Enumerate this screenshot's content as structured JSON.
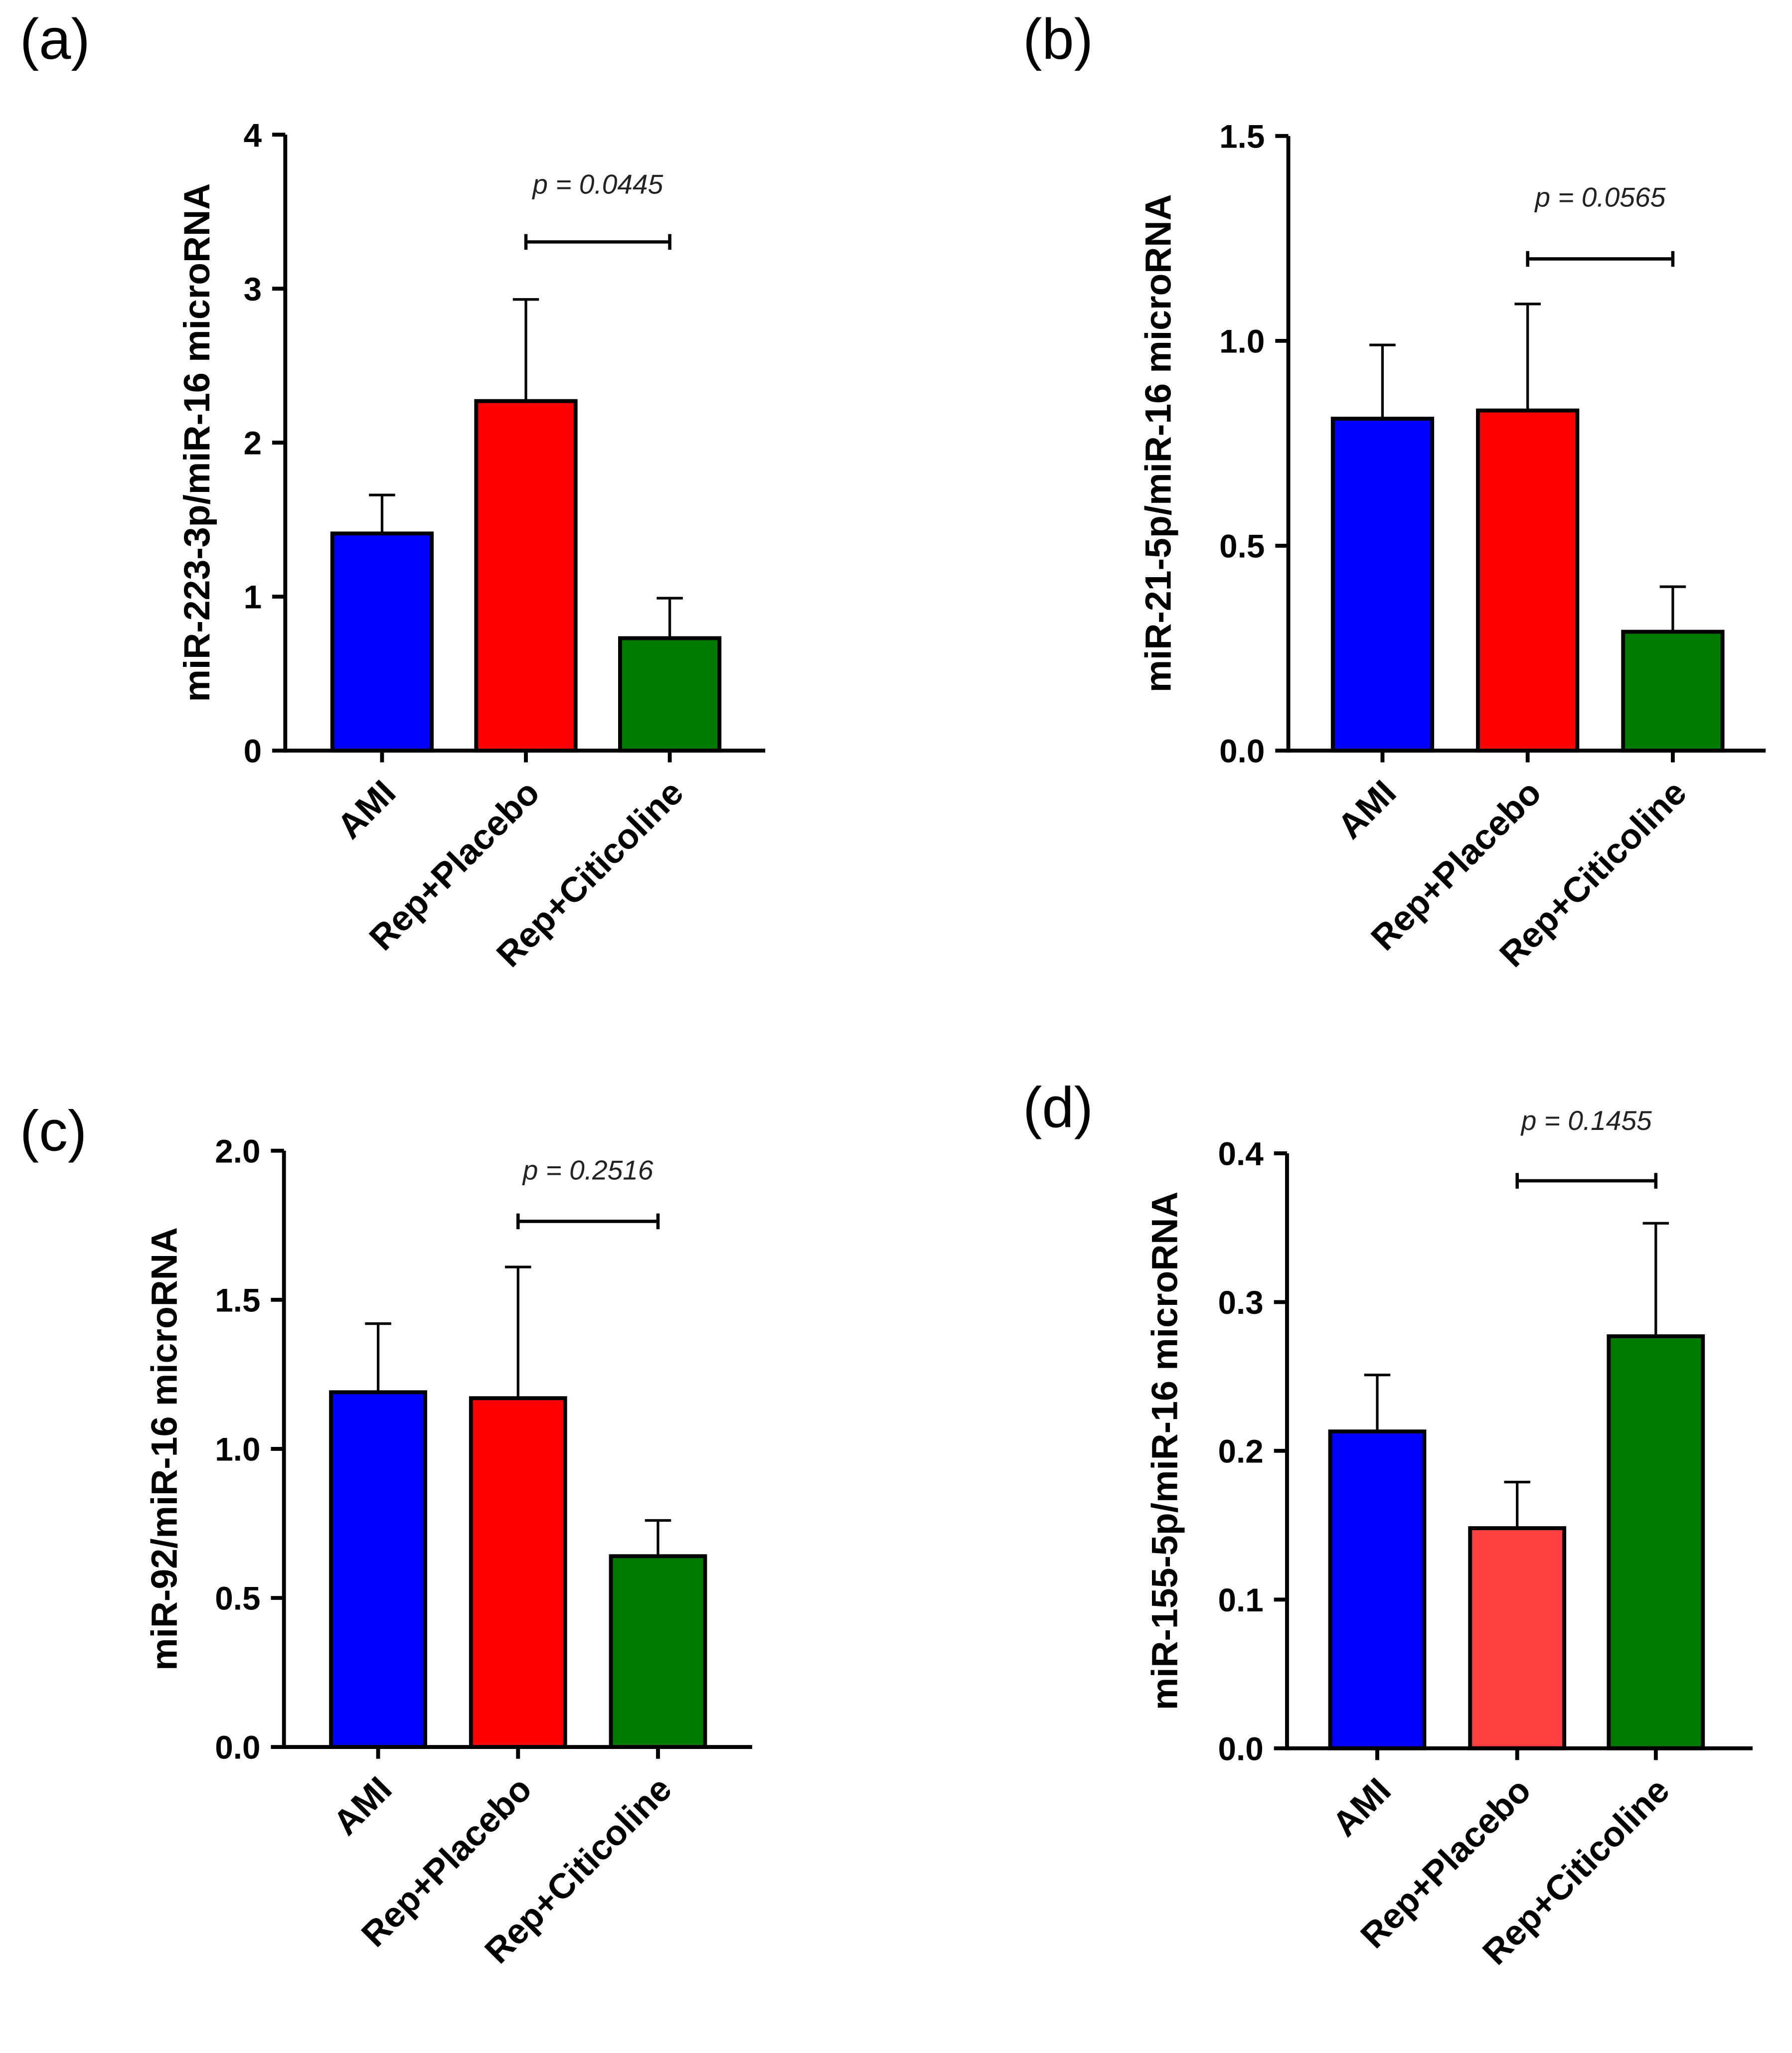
{
  "chart_data": [
    {
      "type": "bar",
      "panel_label": "(a)",
      "categories": [
        "AMI",
        "Rep+Placebo",
        "Rep+Citicoline"
      ],
      "values": [
        1.41,
        2.27,
        0.73
      ],
      "errors": [
        0.25,
        0.66,
        0.26
      ],
      "colors": [
        "#0000FF",
        "#FF0000",
        "#007A00"
      ],
      "ylabel": "miR-223-3p/miR-16 microRNA",
      "ylim": [
        0,
        4
      ],
      "yticks": [
        "0",
        "1",
        "2",
        "3",
        "4"
      ],
      "annotation": {
        "text": "p = 0.0445",
        "between": [
          1,
          2
        ]
      }
    },
    {
      "type": "bar",
      "panel_label": "(b)",
      "categories": [
        "AMI",
        "Rep+Placebo",
        "Rep+Citicoline"
      ],
      "values": [
        0.81,
        0.83,
        0.29
      ],
      "errors": [
        0.18,
        0.26,
        0.11
      ],
      "colors": [
        "#0000FF",
        "#FF0000",
        "#007A00"
      ],
      "ylabel": "miR-21-5p/miR-16 microRNA",
      "ylim": [
        0,
        1.5
      ],
      "yticks": [
        "0.0",
        "0.5",
        "1.0",
        "1.5"
      ],
      "annotation": {
        "text": "p = 0.0565",
        "between": [
          1,
          2
        ]
      }
    },
    {
      "type": "bar",
      "panel_label": "(c)",
      "categories": [
        "AMI",
        "Rep+Placebo",
        "Rep+Citicoline"
      ],
      "values": [
        1.19,
        1.17,
        0.64
      ],
      "errors": [
        0.23,
        0.44,
        0.12
      ],
      "colors": [
        "#0000FF",
        "#FF0000",
        "#007A00"
      ],
      "ylabel": "miR-92/miR-16 microRNA",
      "ylim": [
        0,
        2.0
      ],
      "yticks": [
        "0.0",
        "0.5",
        "1.0",
        "1.5",
        "2.0"
      ],
      "annotation": {
        "text": "p = 0.2516",
        "between": [
          1,
          2
        ]
      }
    },
    {
      "type": "bar",
      "panel_label": "(d)",
      "categories": [
        "AMI",
        "Rep+Placebo",
        "Rep+Citicoline"
      ],
      "values": [
        0.213,
        0.148,
        0.277
      ],
      "errors": [
        0.038,
        0.031,
        0.076
      ],
      "colors": [
        "#0000FF",
        "#FF4040",
        "#007A00"
      ],
      "ylabel": "miR-155-5p/miR-16 microRNA",
      "ylim": [
        0,
        0.4
      ],
      "yticks": [
        "0.0",
        "0.1",
        "0.2",
        "0.3",
        "0.4"
      ],
      "annotation": {
        "text": "p = 0.1455",
        "between": [
          1,
          2
        ]
      }
    }
  ]
}
